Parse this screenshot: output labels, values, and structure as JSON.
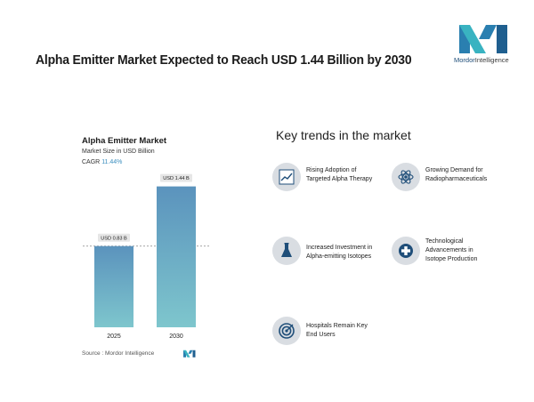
{
  "headline": "Alpha Emitter Market Expected to Reach USD 1.44 Billion by 2030",
  "logo": {
    "brand": "Mordor",
    "suffix": "Intelligence"
  },
  "chart_data": {
    "type": "bar",
    "title": "Alpha Emitter Market",
    "subtitle": "Market Size in USD Billion",
    "cagr_label": "CAGR",
    "cagr_value": "11.44%",
    "categories": [
      "2025",
      "2030"
    ],
    "values": [
      0.83,
      1.44
    ],
    "data_labels": [
      "USD 0.83 B",
      "USD 1.44 B"
    ],
    "ylim": [
      0,
      1.6
    ],
    "colors": {
      "bar_top": "#5b93bd",
      "bar_bottom": "#7ec6cd"
    }
  },
  "source": "Source :  Mordor Intelligence",
  "trends_title": "Key trends in the market",
  "trends": [
    {
      "icon": "chart-icon",
      "lines": [
        "Rising Adoption of",
        "Targeted Alpha Therapy"
      ]
    },
    {
      "icon": "atom-icon",
      "lines": [
        "Growing Demand for",
        "Radiopharmaceuticals"
      ]
    },
    {
      "icon": "flask-icon",
      "lines": [
        "Increased Investment in",
        "Alpha-emitting Isotopes"
      ]
    },
    {
      "icon": "medical-cross-icon",
      "lines": [
        "Technological",
        "Advancements in",
        "Isotope Production"
      ]
    },
    {
      "icon": "target-icon",
      "lines": [
        "Hospitals Remain Key",
        "End Users"
      ]
    }
  ]
}
